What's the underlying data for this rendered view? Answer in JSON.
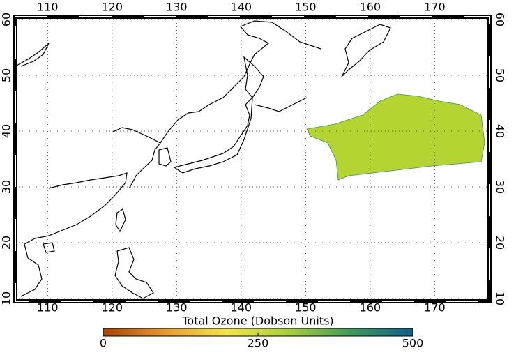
{
  "map": {
    "xlim": [
      105,
      178.5
    ],
    "ylim": [
      10,
      60
    ],
    "xticks": [
      110,
      120,
      130,
      140,
      150,
      160,
      170
    ],
    "yticks": [
      10,
      20,
      30,
      40,
      50,
      60
    ],
    "grid": true
  },
  "colorbar": {
    "label": "Total Ozone (Dobson Units)",
    "lim": [
      0,
      500
    ],
    "ticks": [
      0,
      250,
      500
    ],
    "colors": [
      "#a84300",
      "#e89a30",
      "#f2e64a",
      "#a8cf3a",
      "#3f9a5a",
      "#0f5f8c"
    ]
  }
}
